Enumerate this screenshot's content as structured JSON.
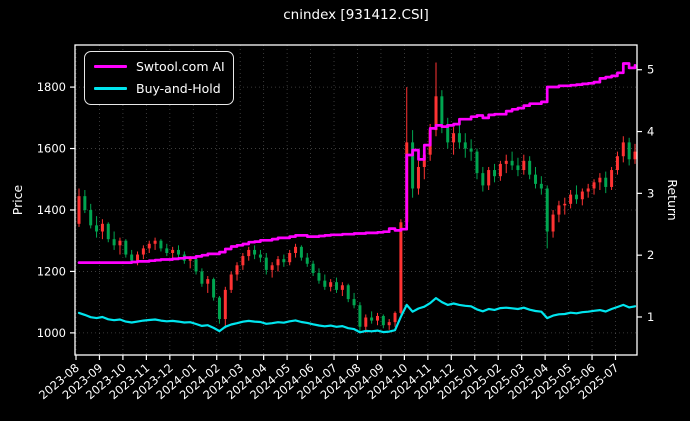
{
  "title": "cnindex [931412.CSI]",
  "legend": {
    "items": [
      {
        "label": "Swtool.com AI",
        "color": "#ff00ff"
      },
      {
        "label": "Buy-and-Hold",
        "color": "#00e5ee"
      }
    ]
  },
  "axes": {
    "left_label": "Price",
    "right_label": "Return",
    "left_ticks": [
      1000,
      1200,
      1400,
      1600,
      1800
    ],
    "right_ticks": [
      1,
      2,
      3,
      4,
      5
    ],
    "x_tick_labels": [
      "2023-08",
      "2023-09",
      "2023-10",
      "2023-11",
      "2023-12",
      "2024-01",
      "2024-02",
      "2024-03",
      "2024-04",
      "2024-05",
      "2024-06",
      "2024-07",
      "2024-08",
      "2024-09",
      "2024-10",
      "2024-11",
      "2024-12",
      "2025-01",
      "2025-02",
      "2025-03",
      "2025-04",
      "2025-05",
      "2025-06",
      "2025-07"
    ]
  },
  "chart_data": {
    "type": "candlestick+line",
    "title": "cnindex [931412.CSI]",
    "x_unit": "week",
    "x_range": [
      "2023-08",
      "2025-07"
    ],
    "grid": "dotted, from left (price) axis and monthly x ticks",
    "legend_position": "upper-left",
    "price_ylim": [
      928,
      1937
    ],
    "return_ylim": [
      0.385,
      5.4
    ],
    "start_price": 1355,
    "colors": {
      "up": "#ff3333",
      "down": "#00a550",
      "ai": "#ff00ff",
      "bh": "#00e5ee"
    },
    "candles_ohlc": [
      [
        1355,
        1470,
        1345,
        1445
      ],
      [
        1445,
        1465,
        1390,
        1400
      ],
      [
        1400,
        1420,
        1340,
        1350
      ],
      [
        1350,
        1380,
        1310,
        1330
      ],
      [
        1330,
        1370,
        1305,
        1355
      ],
      [
        1355,
        1360,
        1295,
        1305
      ],
      [
        1305,
        1330,
        1270,
        1285
      ],
      [
        1285,
        1310,
        1255,
        1300
      ],
      [
        1300,
        1305,
        1245,
        1255
      ],
      [
        1255,
        1270,
        1225,
        1235
      ],
      [
        1235,
        1265,
        1220,
        1255
      ],
      [
        1255,
        1285,
        1240,
        1275
      ],
      [
        1275,
        1300,
        1260,
        1290
      ],
      [
        1290,
        1310,
        1270,
        1300
      ],
      [
        1300,
        1305,
        1265,
        1275
      ],
      [
        1275,
        1290,
        1250,
        1260
      ],
      [
        1260,
        1280,
        1235,
        1270
      ],
      [
        1270,
        1285,
        1245,
        1255
      ],
      [
        1255,
        1265,
        1225,
        1235
      ],
      [
        1235,
        1250,
        1210,
        1240
      ],
      [
        1240,
        1245,
        1190,
        1200
      ],
      [
        1200,
        1210,
        1150,
        1160
      ],
      [
        1160,
        1185,
        1130,
        1175
      ],
      [
        1175,
        1180,
        1105,
        1115
      ],
      [
        1115,
        1120,
        1030,
        1045
      ],
      [
        1045,
        1150,
        1015,
        1140
      ],
      [
        1140,
        1200,
        1130,
        1190
      ],
      [
        1190,
        1230,
        1170,
        1220
      ],
      [
        1220,
        1260,
        1205,
        1250
      ],
      [
        1250,
        1280,
        1235,
        1270
      ],
      [
        1270,
        1285,
        1240,
        1255
      ],
      [
        1255,
        1270,
        1230,
        1245
      ],
      [
        1245,
        1260,
        1190,
        1205
      ],
      [
        1205,
        1230,
        1180,
        1220
      ],
      [
        1220,
        1250,
        1200,
        1240
      ],
      [
        1240,
        1255,
        1215,
        1230
      ],
      [
        1230,
        1270,
        1220,
        1260
      ],
      [
        1260,
        1290,
        1245,
        1280
      ],
      [
        1280,
        1285,
        1235,
        1245
      ],
      [
        1245,
        1260,
        1215,
        1225
      ],
      [
        1225,
        1235,
        1185,
        1195
      ],
      [
        1195,
        1210,
        1160,
        1170
      ],
      [
        1170,
        1190,
        1140,
        1150
      ],
      [
        1150,
        1175,
        1135,
        1165
      ],
      [
        1165,
        1180,
        1130,
        1140
      ],
      [
        1140,
        1165,
        1120,
        1155
      ],
      [
        1155,
        1160,
        1100,
        1110
      ],
      [
        1110,
        1130,
        1080,
        1090
      ],
      [
        1090,
        1100,
        1005,
        1020
      ],
      [
        1020,
        1060,
        1000,
        1050
      ],
      [
        1050,
        1070,
        1030,
        1040
      ],
      [
        1040,
        1065,
        1025,
        1055
      ],
      [
        1055,
        1060,
        1015,
        1025
      ],
      [
        1025,
        1045,
        1010,
        1035
      ],
      [
        1035,
        1070,
        1020,
        1065
      ],
      [
        1065,
        1370,
        1060,
        1360
      ],
      [
        1360,
        1800,
        1350,
        1620
      ],
      [
        1620,
        1660,
        1440,
        1470
      ],
      [
        1470,
        1560,
        1450,
        1540
      ],
      [
        1540,
        1600,
        1500,
        1580
      ],
      [
        1580,
        1680,
        1560,
        1660
      ],
      [
        1660,
        1880,
        1640,
        1770
      ],
      [
        1770,
        1790,
        1650,
        1680
      ],
      [
        1680,
        1700,
        1600,
        1620
      ],
      [
        1620,
        1670,
        1580,
        1650
      ],
      [
        1650,
        1680,
        1600,
        1620
      ],
      [
        1620,
        1650,
        1570,
        1600
      ],
      [
        1600,
        1630,
        1560,
        1590
      ],
      [
        1590,
        1600,
        1500,
        1520
      ],
      [
        1520,
        1540,
        1460,
        1480
      ],
      [
        1480,
        1540,
        1465,
        1530
      ],
      [
        1530,
        1550,
        1490,
        1510
      ],
      [
        1510,
        1560,
        1495,
        1550
      ],
      [
        1550,
        1580,
        1520,
        1560
      ],
      [
        1560,
        1590,
        1530,
        1545
      ],
      [
        1545,
        1570,
        1510,
        1530
      ],
      [
        1530,
        1580,
        1515,
        1560
      ],
      [
        1560,
        1575,
        1500,
        1515
      ],
      [
        1515,
        1540,
        1470,
        1485
      ],
      [
        1485,
        1510,
        1450,
        1470
      ],
      [
        1470,
        1480,
        1275,
        1330
      ],
      [
        1330,
        1400,
        1310,
        1385
      ],
      [
        1385,
        1430,
        1360,
        1415
      ],
      [
        1415,
        1440,
        1385,
        1420
      ],
      [
        1420,
        1465,
        1405,
        1450
      ],
      [
        1450,
        1480,
        1420,
        1435
      ],
      [
        1435,
        1470,
        1415,
        1460
      ],
      [
        1460,
        1485,
        1440,
        1470
      ],
      [
        1470,
        1500,
        1450,
        1490
      ],
      [
        1490,
        1520,
        1465,
        1505
      ],
      [
        1505,
        1525,
        1455,
        1475
      ],
      [
        1475,
        1540,
        1465,
        1530
      ],
      [
        1530,
        1590,
        1515,
        1575
      ],
      [
        1575,
        1640,
        1555,
        1620
      ],
      [
        1620,
        1635,
        1545,
        1565
      ],
      [
        1565,
        1615,
        1550,
        1590
      ]
    ],
    "series": [
      {
        "name": "Swtool.com AI",
        "axis": "return",
        "style": "step",
        "color": "#ff00ff",
        "values": [
          1.88,
          1.88,
          1.88,
          1.88,
          1.88,
          1.88,
          1.88,
          1.88,
          1.88,
          1.89,
          1.9,
          1.9,
          1.91,
          1.92,
          1.93,
          1.93,
          1.94,
          1.95,
          1.96,
          1.96,
          1.98,
          2.0,
          2.02,
          2.02,
          2.05,
          2.1,
          2.14,
          2.16,
          2.18,
          2.21,
          2.22,
          2.24,
          2.24,
          2.26,
          2.28,
          2.28,
          2.3,
          2.32,
          2.32,
          2.3,
          2.3,
          2.31,
          2.32,
          2.33,
          2.33,
          2.34,
          2.34,
          2.35,
          2.35,
          2.36,
          2.36,
          2.37,
          2.38,
          2.43,
          2.4,
          2.42,
          3.62,
          3.7,
          3.55,
          3.78,
          4.05,
          4.1,
          4.08,
          4.1,
          4.12,
          4.2,
          4.2,
          4.24,
          4.26,
          4.22,
          4.27,
          4.28,
          4.28,
          4.33,
          4.36,
          4.38,
          4.42,
          4.45,
          4.45,
          4.48,
          4.72,
          4.72,
          4.74,
          4.74,
          4.75,
          4.76,
          4.77,
          4.78,
          4.8,
          4.86,
          4.88,
          4.9,
          4.95,
          5.1,
          5.03,
          5.07
        ]
      },
      {
        "name": "Buy-and-Hold",
        "axis": "return",
        "style": "line",
        "color": "#00e5ee",
        "values": [
          1.066,
          1.033,
          0.996,
          0.982,
          1.0,
          0.963,
          0.948,
          0.959,
          0.926,
          0.911,
          0.926,
          0.941,
          0.952,
          0.959,
          0.941,
          0.93,
          0.937,
          0.926,
          0.911,
          0.915,
          0.886,
          0.856,
          0.867,
          0.823,
          0.771,
          0.841,
          0.878,
          0.9,
          0.923,
          0.937,
          0.926,
          0.919,
          0.889,
          0.9,
          0.915,
          0.908,
          0.93,
          0.945,
          0.919,
          0.904,
          0.882,
          0.863,
          0.849,
          0.86,
          0.841,
          0.852,
          0.819,
          0.804,
          0.753,
          0.775,
          0.768,
          0.779,
          0.756,
          0.764,
          0.786,
          1.004,
          1.196,
          1.085,
          1.137,
          1.166,
          1.225,
          1.306,
          1.24,
          1.196,
          1.218,
          1.196,
          1.181,
          1.173,
          1.122,
          1.092,
          1.129,
          1.114,
          1.144,
          1.151,
          1.14,
          1.129,
          1.151,
          1.118,
          1.096,
          1.085,
          0.982,
          1.022,
          1.044,
          1.048,
          1.07,
          1.059,
          1.077,
          1.085,
          1.1,
          1.111,
          1.089,
          1.129,
          1.162,
          1.196,
          1.155,
          1.173
        ]
      }
    ]
  }
}
